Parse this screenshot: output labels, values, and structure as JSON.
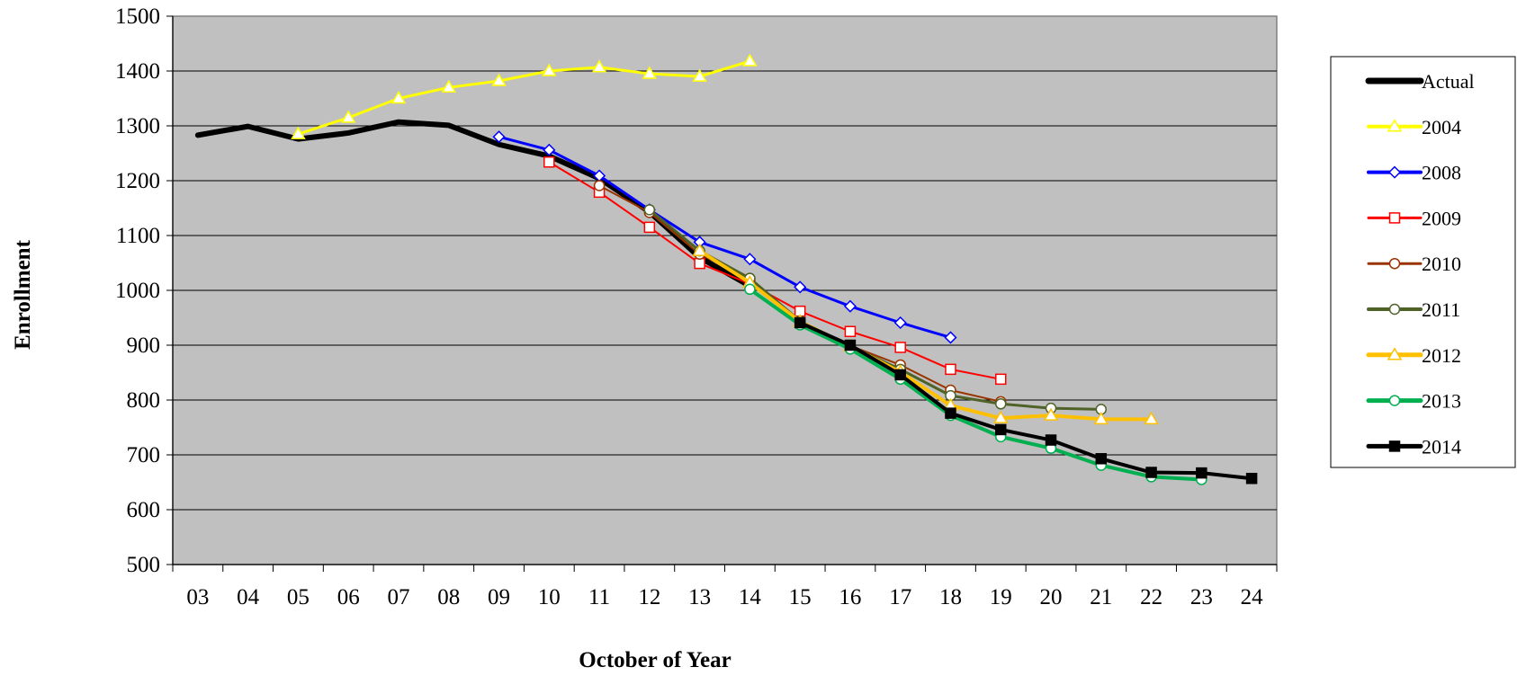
{
  "chart_data": {
    "type": "line",
    "title": "",
    "xlabel": "October of Year",
    "ylabel": "Enrollment",
    "x": [
      "03",
      "04",
      "05",
      "06",
      "07",
      "08",
      "09",
      "10",
      "11",
      "12",
      "13",
      "14",
      "15",
      "16",
      "17",
      "18",
      "19",
      "20",
      "21",
      "22",
      "23",
      "24"
    ],
    "ylim": [
      500,
      1500
    ],
    "yticks": [
      500,
      600,
      700,
      800,
      900,
      1000,
      1100,
      1200,
      1300,
      1400,
      1500
    ],
    "grid": true,
    "plot_background": "#c0c0c0",
    "legend_position": "right",
    "series": [
      {
        "name": "Actual",
        "color": "#000000",
        "marker": "none",
        "width": 6,
        "hollow": false,
        "x": [
          "03",
          "04",
          "05",
          "06",
          "07",
          "08",
          "09",
          "10",
          "11",
          "12",
          "13",
          "14"
        ],
        "values": [
          1283,
          1299,
          1276,
          1287,
          1307,
          1301,
          1266,
          1245,
          1204,
          1143,
          1060,
          1008
        ]
      },
      {
        "name": "2004",
        "color": "#ffff00",
        "marker": "triangle",
        "width": 3,
        "hollow": true,
        "x": [
          "05",
          "06",
          "07",
          "08",
          "09",
          "10",
          "11",
          "12",
          "13",
          "14"
        ],
        "values": [
          1285,
          1315,
          1350,
          1370,
          1382,
          1400,
          1407,
          1395,
          1390,
          1418
        ]
      },
      {
        "name": "2008",
        "color": "#0000ff",
        "marker": "diamond",
        "width": 3,
        "hollow": true,
        "x": [
          "09",
          "10",
          "11",
          "12",
          "13",
          "14",
          "15",
          "16",
          "17",
          "18"
        ],
        "values": [
          1280,
          1256,
          1209,
          1147,
          1088,
          1057,
          1006,
          971,
          941,
          914
        ]
      },
      {
        "name": "2009",
        "color": "#ff0000",
        "marker": "square",
        "width": 2,
        "hollow": true,
        "x": [
          "10",
          "11",
          "12",
          "13",
          "14",
          "15",
          "16",
          "17",
          "18",
          "19"
        ],
        "values": [
          1234,
          1179,
          1115,
          1049,
          1012,
          962,
          925,
          896,
          856,
          838
        ]
      },
      {
        "name": "2010",
        "color": "#993300",
        "marker": "circle",
        "width": 2,
        "hollow": true,
        "x": [
          "11",
          "12",
          "13",
          "14",
          "15",
          "16",
          "17",
          "18",
          "19"
        ],
        "values": [
          1191,
          1142,
          1066,
          1022,
          940,
          899,
          864,
          818,
          797
        ]
      },
      {
        "name": "2011",
        "color": "#4f6228",
        "marker": "circle",
        "width": 3,
        "hollow": true,
        "x": [
          "12",
          "13",
          "14",
          "15",
          "16",
          "17",
          "18",
          "19",
          "20",
          "21"
        ],
        "values": [
          1147,
          1072,
          1022,
          944,
          898,
          856,
          808,
          793,
          785,
          783
        ]
      },
      {
        "name": "2012",
        "color": "#ffc000",
        "marker": "triangle",
        "width": 4,
        "hollow": true,
        "x": [
          "13",
          "14",
          "15",
          "16",
          "17",
          "18",
          "19",
          "20",
          "21",
          "22"
        ],
        "values": [
          1072,
          1014,
          943,
          898,
          851,
          790,
          767,
          772,
          765,
          765
        ]
      },
      {
        "name": "2013",
        "color": "#00b050",
        "marker": "circle",
        "width": 4,
        "hollow": true,
        "x": [
          "14",
          "15",
          "16",
          "17",
          "18",
          "19",
          "20",
          "21",
          "22",
          "23"
        ],
        "values": [
          1002,
          937,
          893,
          838,
          772,
          733,
          712,
          681,
          660,
          655
        ]
      },
      {
        "name": "2014",
        "color": "#000000",
        "marker": "square",
        "width": 4,
        "hollow": false,
        "x": [
          "15",
          "16",
          "17",
          "18",
          "19",
          "20",
          "21",
          "22",
          "23",
          "24"
        ],
        "values": [
          941,
          900,
          846,
          776,
          746,
          727,
          693,
          668,
          667,
          657
        ]
      }
    ]
  }
}
